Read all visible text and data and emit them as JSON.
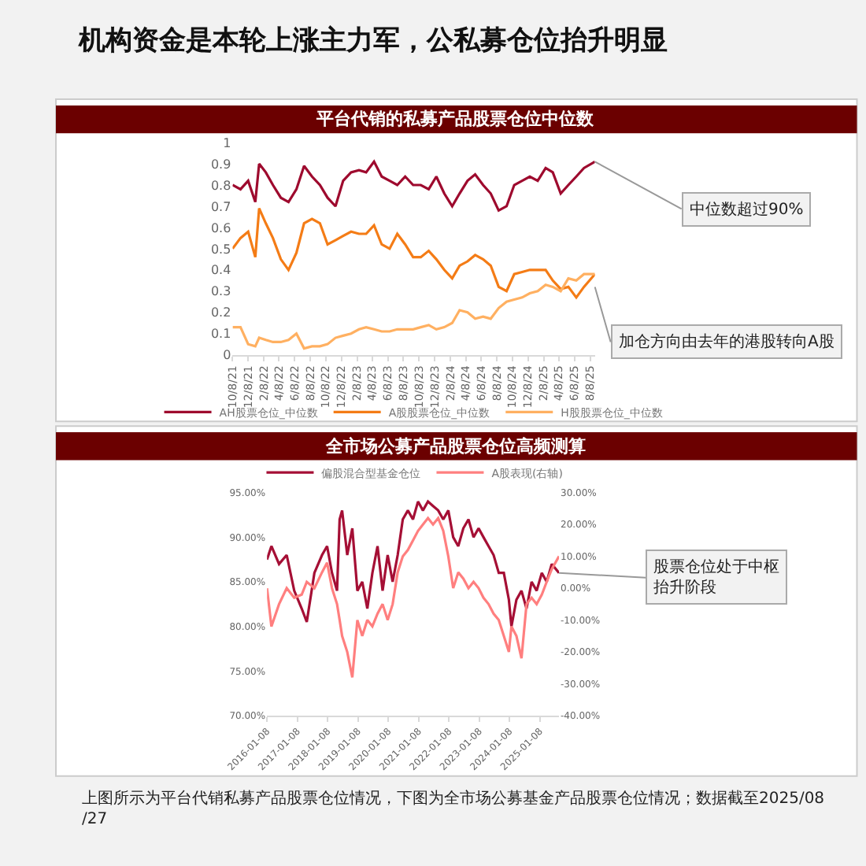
{
  "chart_data": [
    {
      "type": "line",
      "title": "机构资金是本轮上涨主力军，公私募仓位抬升明显",
      "subtitle": "平台代销的私募产品股票仓位中位数",
      "x": [
        "2021-10-08",
        "2021-11-08",
        "2021-12-08",
        "2022-01-05",
        "2022-01-20",
        "2022-02-15",
        "2022-03-15",
        "2022-04-15",
        "2022-05-15",
        "2022-06-15",
        "2022-07-15",
        "2022-08-15",
        "2022-09-15",
        "2022-10-15",
        "2022-11-15",
        "2022-12-15",
        "2023-01-15",
        "2023-02-15",
        "2023-03-15",
        "2023-04-15",
        "2023-05-15",
        "2023-06-15",
        "2023-07-15",
        "2023-08-15",
        "2023-09-15",
        "2023-10-15",
        "2023-11-15",
        "2023-12-15",
        "2024-01-15",
        "2024-02-15",
        "2024-03-15",
        "2024-04-15",
        "2024-05-15",
        "2024-06-15",
        "2024-07-15",
        "2024-08-15",
        "2024-09-15",
        "2024-10-15",
        "2024-11-15",
        "2024-12-15",
        "2025-01-15",
        "2025-02-15",
        "2025-03-15",
        "2025-04-15",
        "2025-05-15",
        "2025-06-15",
        "2025-07-15",
        "2025-08-27"
      ],
      "series": [
        {
          "name": "AH股票仓位_中位数",
          "color": "#9e0a2e",
          "values": [
            0.8,
            0.78,
            0.82,
            0.72,
            0.9,
            0.86,
            0.8,
            0.74,
            0.72,
            0.78,
            0.89,
            0.84,
            0.8,
            0.74,
            0.7,
            0.82,
            0.86,
            0.87,
            0.86,
            0.91,
            0.84,
            0.82,
            0.8,
            0.84,
            0.8,
            0.8,
            0.78,
            0.84,
            0.76,
            0.7,
            0.76,
            0.82,
            0.85,
            0.8,
            0.76,
            0.68,
            0.7,
            0.8,
            0.82,
            0.84,
            0.82,
            0.88,
            0.86,
            0.76,
            0.8,
            0.84,
            0.88,
            0.91
          ]
        },
        {
          "name": "A股股票仓位_中位数",
          "color": "#f47c16",
          "values": [
            0.5,
            0.55,
            0.58,
            0.46,
            0.69,
            0.62,
            0.55,
            0.45,
            0.4,
            0.48,
            0.62,
            0.64,
            0.62,
            0.52,
            0.54,
            0.56,
            0.58,
            0.57,
            0.57,
            0.61,
            0.52,
            0.5,
            0.57,
            0.52,
            0.46,
            0.46,
            0.49,
            0.45,
            0.4,
            0.36,
            0.42,
            0.44,
            0.47,
            0.45,
            0.42,
            0.32,
            0.3,
            0.38,
            0.39,
            0.4,
            0.4,
            0.4,
            0.35,
            0.31,
            0.32,
            0.27,
            0.32,
            0.38
          ]
        },
        {
          "name": "H股股票仓位_中位数",
          "color": "#ffb061",
          "values": [
            0.13,
            0.13,
            0.05,
            0.04,
            0.08,
            0.07,
            0.06,
            0.06,
            0.07,
            0.1,
            0.03,
            0.04,
            0.04,
            0.05,
            0.08,
            0.09,
            0.1,
            0.12,
            0.13,
            0.12,
            0.11,
            0.11,
            0.12,
            0.12,
            0.12,
            0.13,
            0.14,
            0.12,
            0.13,
            0.15,
            0.21,
            0.2,
            0.17,
            0.18,
            0.17,
            0.22,
            0.25,
            0.26,
            0.27,
            0.29,
            0.3,
            0.33,
            0.32,
            0.3,
            0.36,
            0.35,
            0.38,
            0.38
          ]
        }
      ],
      "xlim": [
        "2021-10-08",
        "2025-08-27"
      ],
      "xticks": [
        {
          "value": "2021-10-08",
          "label": "10/8/21"
        },
        {
          "value": "2021-12-08",
          "label": "12/8/21"
        },
        {
          "value": "2022-02-08",
          "label": "2/8/22"
        },
        {
          "value": "2022-04-08",
          "label": "4/8/22"
        },
        {
          "value": "2022-06-08",
          "label": "6/8/22"
        },
        {
          "value": "2022-08-08",
          "label": "8/8/22"
        },
        {
          "value": "2022-10-08",
          "label": "10/8/22"
        },
        {
          "value": "2022-12-08",
          "label": "12/8/22"
        },
        {
          "value": "2023-02-08",
          "label": "2/8/23"
        },
        {
          "value": "2023-04-08",
          "label": "4/8/23"
        },
        {
          "value": "2023-06-08",
          "label": "6/8/23"
        },
        {
          "value": "2023-08-08",
          "label": "8/8/23"
        },
        {
          "value": "2023-10-08",
          "label": "10/8/23"
        },
        {
          "value": "2023-12-08",
          "label": "12/8/23"
        },
        {
          "value": "2024-02-08",
          "label": "2/8/24"
        },
        {
          "value": "2024-04-08",
          "label": "4/8/24"
        },
        {
          "value": "2024-06-08",
          "label": "6/8/24"
        },
        {
          "value": "2024-08-08",
          "label": "8/8/24"
        },
        {
          "value": "2024-10-08",
          "label": "10/8/24"
        },
        {
          "value": "2024-12-08",
          "label": "12/8/24"
        },
        {
          "value": "2025-02-08",
          "label": "2/8/25"
        },
        {
          "value": "2025-04-08",
          "label": "4/8/25"
        },
        {
          "value": "2025-06-08",
          "label": "6/8/25"
        },
        {
          "value": "2025-08-08",
          "label": "8/8/25"
        }
      ],
      "ylim": [
        0,
        1
      ],
      "yticks": [
        0,
        0.1,
        0.2,
        0.3,
        0.4,
        0.5,
        0.6,
        0.7,
        0.8,
        0.9,
        1
      ],
      "legend": "bottom",
      "marker": "none",
      "line_style": "solid",
      "annotations": [
        {
          "text": "中位数超过90%",
          "x": "2025-08-27",
          "y": 0.91
        },
        {
          "text": "加仓方向由去年的港股转向A股",
          "x": "2025-08-27",
          "y": 0.32
        }
      ]
    },
    {
      "type": "line",
      "title": "全市场公募产品股票仓位高频测算",
      "x": [
        "2016-01-08",
        "2016-03-01",
        "2016-06-01",
        "2016-09-01",
        "2016-12-01",
        "2017-03-01",
        "2017-05-01",
        "2017-08-01",
        "2017-11-01",
        "2018-01-01",
        "2018-03-01",
        "2018-05-01",
        "2018-06-01",
        "2018-07-01",
        "2018-09-01",
        "2018-11-01",
        "2019-01-01",
        "2019-03-01",
        "2019-05-01",
        "2019-07-01",
        "2019-09-01",
        "2019-11-01",
        "2020-01-01",
        "2020-03-01",
        "2020-05-01",
        "2020-07-01",
        "2020-09-01",
        "2020-11-01",
        "2021-01-01",
        "2021-03-01",
        "2021-05-01",
        "2021-07-01",
        "2021-09-01",
        "2021-11-01",
        "2022-01-01",
        "2022-03-01",
        "2022-05-01",
        "2022-07-01",
        "2022-09-01",
        "2022-11-01",
        "2023-01-01",
        "2023-03-01",
        "2023-05-01",
        "2023-07-01",
        "2023-09-01",
        "2023-11-01",
        "2024-01-01",
        "2024-02-01",
        "2024-04-01",
        "2024-06-01",
        "2024-08-01",
        "2024-10-01",
        "2024-12-01",
        "2025-02-01",
        "2025-04-01",
        "2025-06-01",
        "2025-08-27"
      ],
      "series": [
        {
          "name": "偏股混合型基金仓位",
          "color": "#a50f35",
          "values": [
            87.5,
            89,
            87,
            88,
            84,
            82,
            80.5,
            86,
            88,
            89,
            86,
            84,
            92,
            93,
            88,
            91,
            84,
            85,
            82,
            86,
            89,
            84,
            88,
            85,
            88,
            92,
            93,
            92,
            94,
            93,
            94,
            93.5,
            93,
            92,
            93,
            90,
            89,
            91,
            92,
            90,
            91,
            90,
            89,
            88,
            86,
            86,
            83,
            80,
            83,
            84,
            82,
            85,
            84,
            86,
            85,
            87,
            86
          ]
        },
        {
          "name": "A股表现(右轴)",
          "color": "#ff7f7f",
          "axis": "y2",
          "values": [
            0,
            -12,
            -5,
            0,
            -3,
            -2,
            2,
            0,
            5,
            8,
            0,
            -5,
            -10,
            -15,
            -20,
            -28,
            -10,
            -15,
            -10,
            -12,
            -8,
            -5,
            -10,
            -5,
            5,
            10,
            12,
            15,
            18,
            20,
            22,
            20,
            22,
            18,
            10,
            0,
            5,
            3,
            0,
            2,
            0,
            -3,
            -5,
            -8,
            -10,
            -15,
            -20,
            -12,
            -15,
            -22,
            -5,
            -3,
            -5,
            -2,
            2,
            6,
            10
          ]
        }
      ],
      "xlim": [
        "2016-01-08",
        "2025-08-27"
      ],
      "xticks": [
        "2016-01-08",
        "2017-01-08",
        "2018-01-08",
        "2019-01-08",
        "2020-01-08",
        "2021-01-08",
        "2022-01-08",
        "2023-01-08",
        "2024-01-08",
        "2025-01-08"
      ],
      "ylim": [
        70,
        95
      ],
      "yticks": [
        {
          "value": 70,
          "label": "70.00%"
        },
        {
          "value": 75,
          "label": "75.00%"
        },
        {
          "value": 80,
          "label": "80.00%"
        },
        {
          "value": 85,
          "label": "85.00%"
        },
        {
          "value": 90,
          "label": "90.00%"
        },
        {
          "value": 95,
          "label": "95.00%"
        }
      ],
      "y2lim": [
        -40,
        30
      ],
      "y2ticks": [
        {
          "value": -40,
          "label": "-40.00%"
        },
        {
          "value": -30,
          "label": "-30.00%"
        },
        {
          "value": -20,
          "label": "-20.00%"
        },
        {
          "value": -10,
          "label": "-10.00%"
        },
        {
          "value": 0,
          "label": "0.00%"
        },
        {
          "value": 10,
          "label": "10.00%"
        },
        {
          "value": 20,
          "label": "20.00%"
        },
        {
          "value": 30,
          "label": "30.00%"
        }
      ],
      "legend": "top",
      "marker": "none",
      "line_style": "solid",
      "annotations": [
        {
          "text": "股票仓位处于中枢抬升阶段",
          "x": "2025-08-27",
          "y": 86
        },
        "上图所示为平台代销私募产品股票仓位情况，下图为全市场公募基金产品股票仓位情况；数据截至2025/08/27"
      ]
    }
  ]
}
